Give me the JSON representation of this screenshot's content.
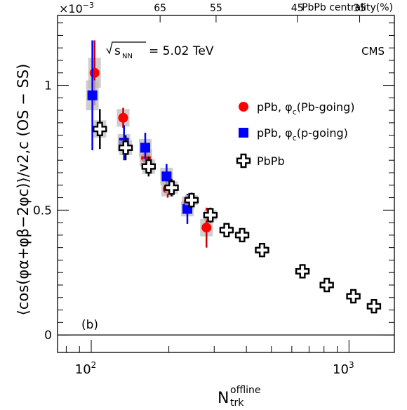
{
  "chart_data": {
    "type": "scatter",
    "title": "",
    "panel_label": "(b)",
    "energy_label_prefix": "√s",
    "energy_label_sub": "NN",
    "energy_label_value": "= 5.02 TeV",
    "experiment": "CMS",
    "scale_factor": "×10",
    "scale_exponent": "−3",
    "xlabel": "N",
    "xlabel_sup": "offline",
    "xlabel_sub": "trk",
    "ylabel": "⟨cos(φα+φβ−2φc)⟩/v2,c (OS − SS)",
    "x_scale": "log",
    "xlim": [
      74,
      1500
    ],
    "ylim": [
      -0.07,
      1.28
    ],
    "x_ticks": [
      {
        "value": 100,
        "base": "10",
        "exp": "2"
      },
      {
        "value": 1000,
        "base": "10",
        "exp": "3"
      }
    ],
    "y_ticks": [
      {
        "value": 0,
        "label": "0"
      },
      {
        "value": 0.5,
        "label": "0.5"
      },
      {
        "value": 1,
        "label": "1"
      }
    ],
    "zero_line": true,
    "legend_position": "right",
    "top_axis": {
      "title": "PbPb centrality(%)",
      "ticks": [
        {
          "x": 185,
          "label": "65"
        },
        {
          "x": 305,
          "label": "55"
        },
        {
          "x": 630,
          "label": "45"
        },
        {
          "x": 1100,
          "label": "35"
        }
      ]
    },
    "series": [
      {
        "name": "pPb, φc(Pb-going)",
        "legend_main": "pPb, φ",
        "legend_sub": "c",
        "legend_tail": "(Pb-going)",
        "marker": "circle",
        "color": "#ff0000",
        "errcolor": "#cc0000",
        "points": [
          {
            "x": 103,
            "y": 1.05,
            "stat": 0.13,
            "sys": 0.06
          },
          {
            "x": 133,
            "y": 0.87,
            "stat": 0.04,
            "sys": 0.035
          },
          {
            "x": 163,
            "y": 0.71,
            "stat": 0.04,
            "sys": 0.035
          },
          {
            "x": 198,
            "y": 0.585,
            "stat": 0.035,
            "sys": 0.03
          },
          {
            "x": 238,
            "y": 0.53,
            "stat": 0.03,
            "sys": 0.025
          },
          {
            "x": 280,
            "y": 0.43,
            "stat": 0.08,
            "sys": 0.035
          }
        ]
      },
      {
        "name": "pPb, φc(p-going)",
        "legend_main": "pPb, φ",
        "legend_sub": "c",
        "legend_tail": "(p-going)",
        "marker": "square",
        "color": "#0000ff",
        "errcolor": "#0000ff",
        "points": [
          {
            "x": 101,
            "y": 0.96,
            "stat": 0.22,
            "sys": 0.06
          },
          {
            "x": 134,
            "y": 0.77,
            "stat": 0.07,
            "sys": 0.035
          },
          {
            "x": 162,
            "y": 0.75,
            "stat": 0.06,
            "sys": 0.035
          },
          {
            "x": 196,
            "y": 0.635,
            "stat": 0.05,
            "sys": 0.035
          },
          {
            "x": 236,
            "y": 0.505,
            "stat": 0.06,
            "sys": 0.03
          }
        ]
      },
      {
        "name": "PbPb",
        "legend_main": "PbPb",
        "legend_sub": "",
        "legend_tail": "",
        "marker": "cross",
        "color": "#000000",
        "errcolor": "#000000",
        "points": [
          {
            "x": 108,
            "y": 0.825,
            "stat": 0.08,
            "sys": 0.035
          },
          {
            "x": 136,
            "y": 0.75,
            "stat": 0.05,
            "sys": 0.03
          },
          {
            "x": 167,
            "y": 0.675,
            "stat": 0.04,
            "sys": 0.03
          },
          {
            "x": 205,
            "y": 0.59,
            "stat": 0.035,
            "sys": 0.025
          },
          {
            "x": 245,
            "y": 0.54,
            "stat": 0.03,
            "sys": 0.02
          },
          {
            "x": 290,
            "y": 0.48,
            "stat": 0.03,
            "sys": 0.02
          },
          {
            "x": 335,
            "y": 0.42,
            "stat": 0.02,
            "sys": 0.015
          },
          {
            "x": 385,
            "y": 0.4,
            "stat": 0.02,
            "sys": 0.015
          },
          {
            "x": 460,
            "y": 0.34,
            "stat": 0.02,
            "sys": 0.015
          },
          {
            "x": 660,
            "y": 0.255,
            "stat": 0.015,
            "sys": 0.012
          },
          {
            "x": 820,
            "y": 0.2,
            "stat": 0.015,
            "sys": 0.012
          },
          {
            "x": 1040,
            "y": 0.155,
            "stat": 0.012,
            "sys": 0.01
          },
          {
            "x": 1250,
            "y": 0.115,
            "stat": 0.012,
            "sys": 0.01
          }
        ]
      }
    ]
  }
}
